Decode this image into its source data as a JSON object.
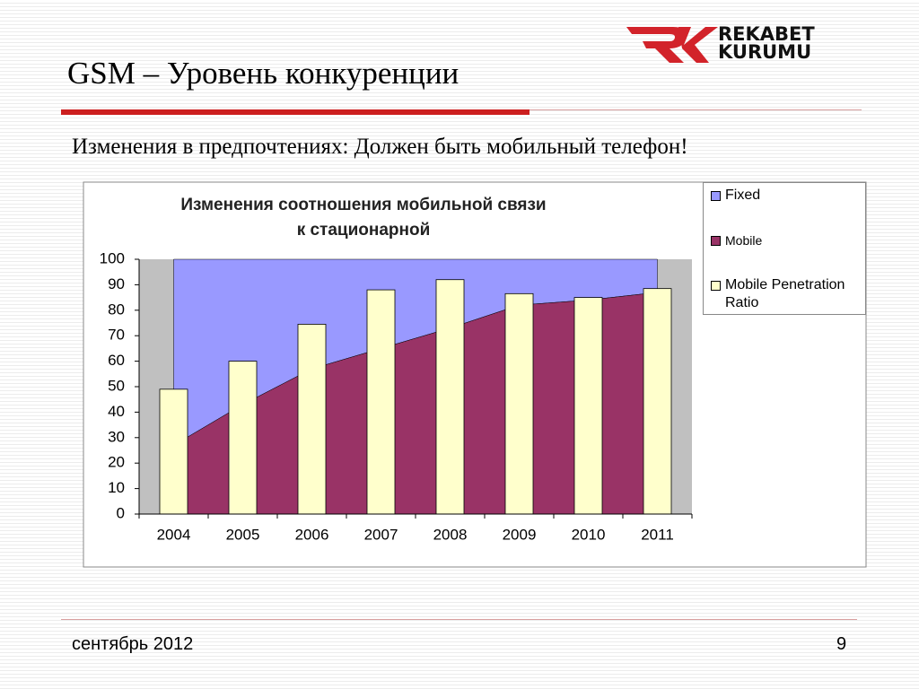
{
  "slide": {
    "title": "GSM – Уровень конкуренции",
    "subtitle": "Изменения в предпочтениях: Должен быть мобильный телефон!",
    "footer": "сентябрь 2012",
    "page": "9",
    "logo": [
      "REKABET",
      "KURUMU"
    ]
  },
  "chart_data": {
    "type": "combo",
    "title": [
      "Изменения соотношения мобильной связи",
      "к стационарной"
    ],
    "categories": [
      "2004",
      "2005",
      "2006",
      "2007",
      "2008",
      "2009",
      "2010",
      "2011"
    ],
    "series": [
      {
        "name": "Fixed",
        "type": "area",
        "color": "#9999ff",
        "values": [
          73,
          57,
          43,
          35,
          27,
          18,
          16,
          13
        ]
      },
      {
        "name": "Mobile",
        "type": "area",
        "color": "#993366",
        "values": [
          27,
          43,
          57,
          65,
          73,
          82,
          84,
          87
        ]
      },
      {
        "name": "Mobile Penetration Ratio",
        "type": "bar",
        "color": "#ffffcc",
        "values": [
          49,
          60,
          74.5,
          88,
          92,
          86.5,
          85,
          88.5
        ]
      }
    ],
    "ylim": [
      0,
      100
    ],
    "yticks": [
      0,
      10,
      20,
      30,
      40,
      50,
      60,
      70,
      80,
      90,
      100
    ],
    "plot_background": "#c0c0c0"
  }
}
